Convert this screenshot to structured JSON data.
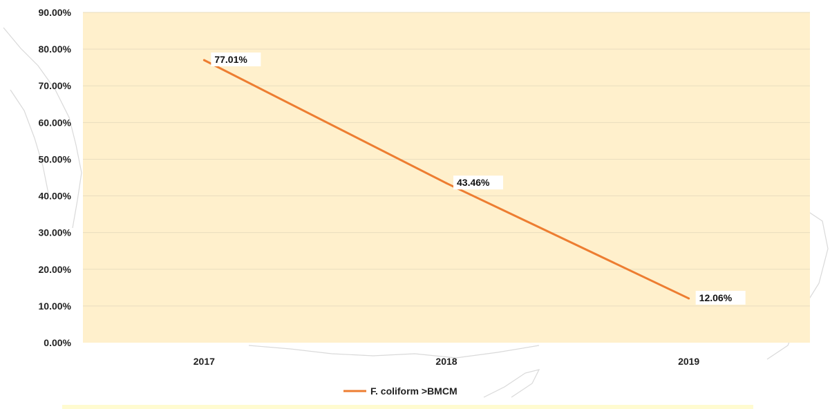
{
  "chart_data": {
    "type": "line",
    "categories": [
      "2017",
      "2018",
      "2019"
    ],
    "series": [
      {
        "name": "F. coliform >BMCM",
        "values": [
          77.01,
          43.46,
          12.06
        ],
        "labels": [
          "77.01%",
          "43.46%",
          "12.06%"
        ],
        "color": "#ED7D31"
      }
    ],
    "ylim": [
      0,
      90
    ],
    "ytick_values": [
      0,
      10,
      20,
      30,
      40,
      50,
      60,
      70,
      80,
      90
    ],
    "ytick_labels": [
      "0.00%",
      "10.00%",
      "20.00%",
      "30.00%",
      "40.00%",
      "50.00%",
      "60.00%",
      "70.00%",
      "80.00%",
      "90.00%"
    ],
    "grid": true,
    "legend_position": "bottom",
    "plot_background": "#FFF0CC",
    "gridline_color": "#E9DDBF"
  }
}
